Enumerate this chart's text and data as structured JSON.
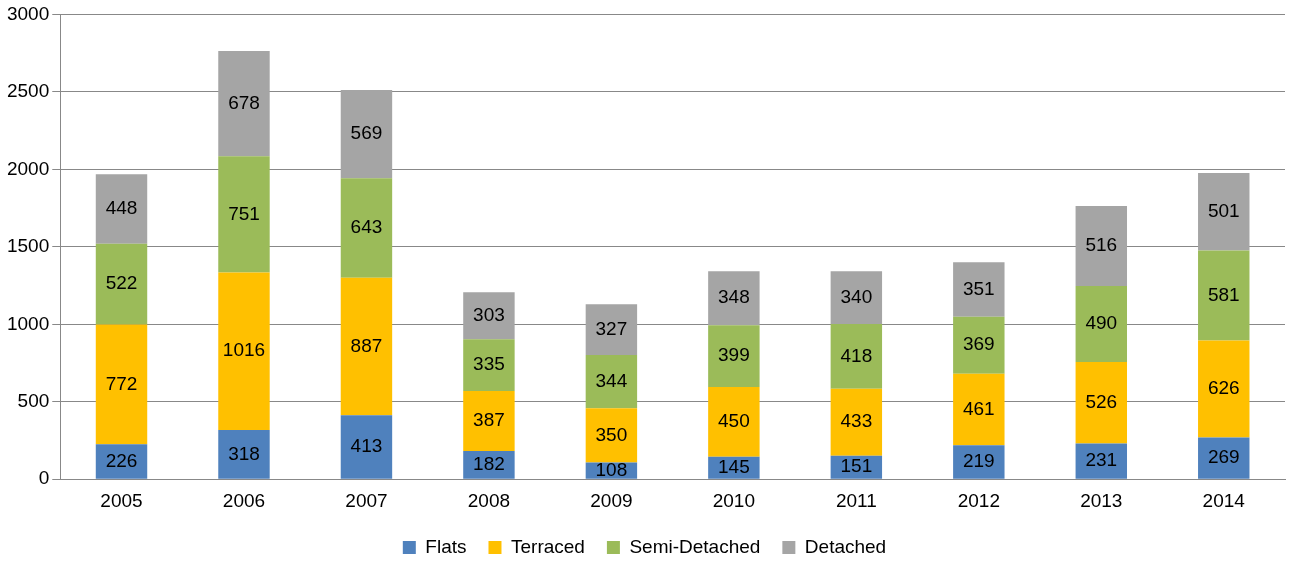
{
  "chart_data": {
    "type": "bar",
    "stacked": true,
    "categories": [
      "2005",
      "2006",
      "2007",
      "2008",
      "2009",
      "2010",
      "2011",
      "2012",
      "2013",
      "2014"
    ],
    "series": [
      {
        "name": "Flats",
        "color": "#4f81bd",
        "values": [
          226,
          318,
          413,
          182,
          108,
          145,
          151,
          219,
          231,
          269
        ]
      },
      {
        "name": "Terraced",
        "color": "#ffc000",
        "values": [
          772,
          1016,
          887,
          387,
          350,
          450,
          433,
          461,
          526,
          626
        ]
      },
      {
        "name": "Semi-Detached",
        "color": "#9bbb59",
        "values": [
          522,
          751,
          643,
          335,
          344,
          399,
          418,
          369,
          490,
          581
        ]
      },
      {
        "name": "Detached",
        "color": "#a5a5a5",
        "values": [
          448,
          678,
          569,
          303,
          327,
          348,
          340,
          351,
          516,
          501
        ]
      }
    ],
    "ylim": [
      0,
      3000
    ],
    "yticks": [
      0,
      500,
      1000,
      1500,
      2000,
      2500,
      3000
    ],
    "grid": "y",
    "legend": "bottom",
    "data_labels": true
  }
}
